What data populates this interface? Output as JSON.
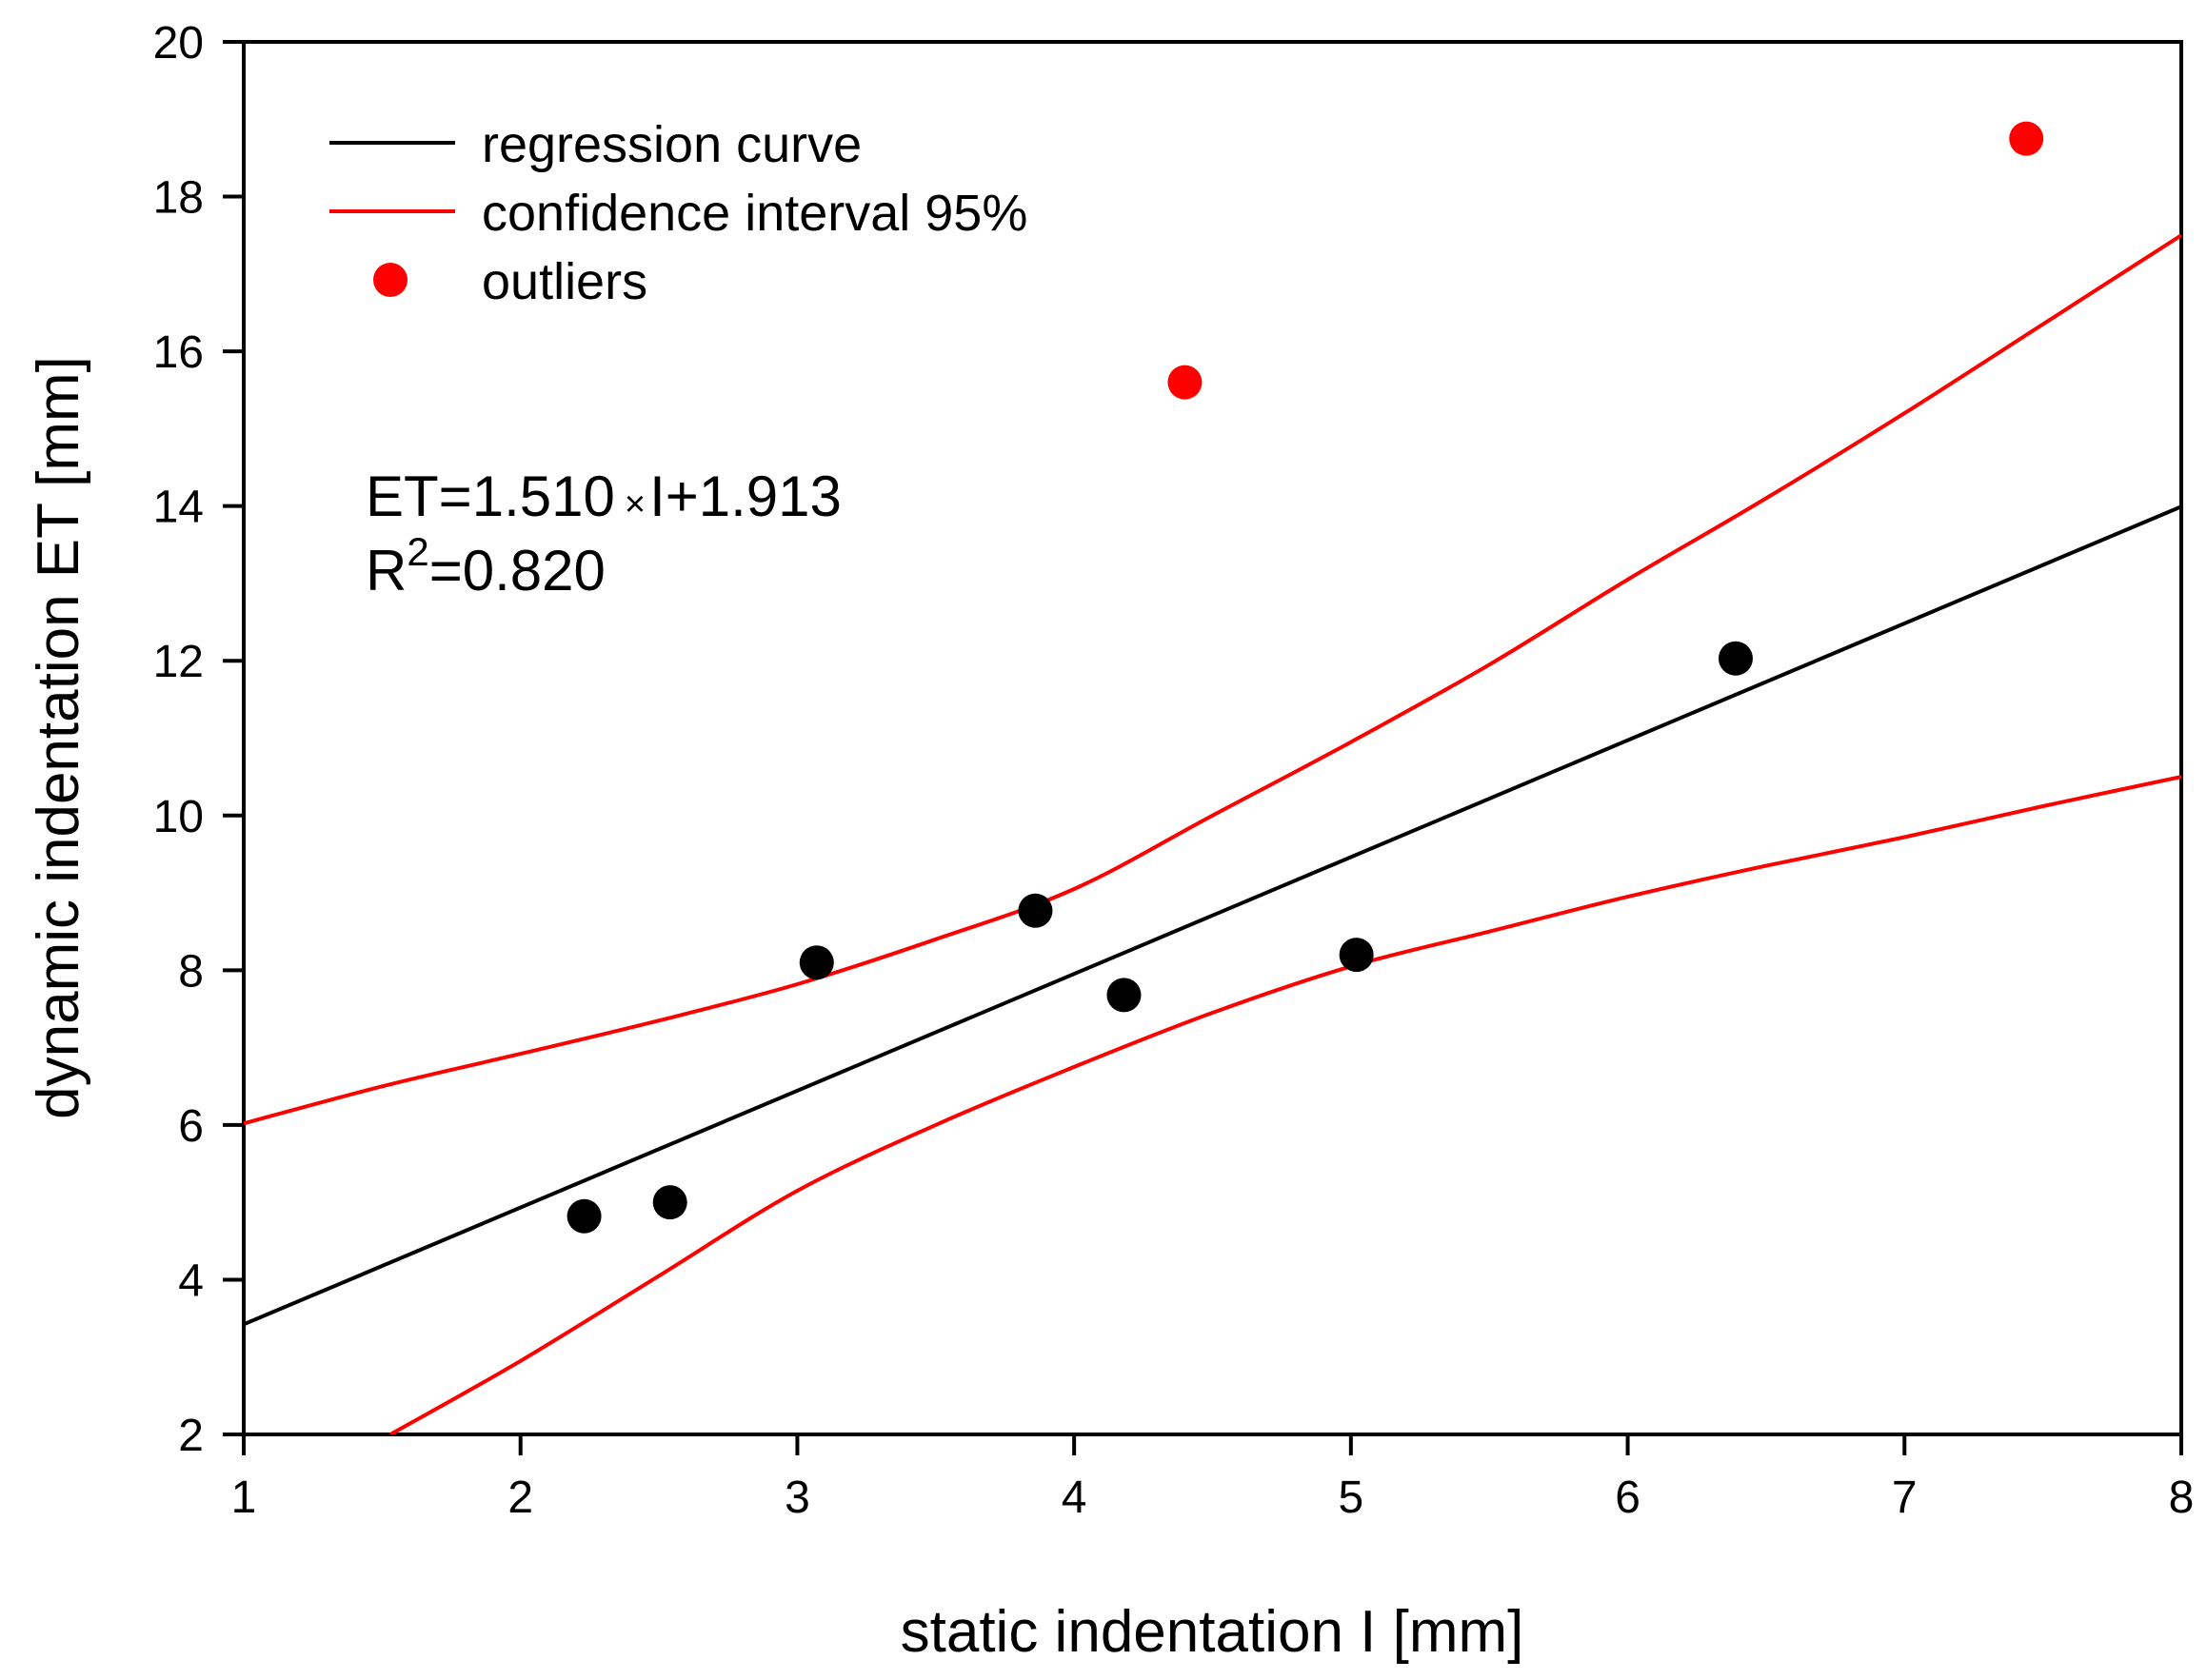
{
  "chart_data": {
    "type": "scatter",
    "xlabel": "static indentation I [mm]",
    "ylabel": "dynamic indentation ET [mm]",
    "xlim": [
      1,
      8
    ],
    "ylim": [
      2,
      20
    ],
    "xticks": [
      1,
      2,
      3,
      4,
      5,
      6,
      7,
      8
    ],
    "yticks": [
      2,
      4,
      6,
      8,
      10,
      12,
      14,
      16,
      18,
      20
    ],
    "grid": false,
    "legend_position": "top-left",
    "legend": [
      {
        "label": "regression curve",
        "kind": "line",
        "color": "#000000"
      },
      {
        "label": "confidence interval 95%",
        "kind": "line",
        "color": "#ff0000"
      },
      {
        "label": "outliers",
        "kind": "marker",
        "color": "#ff0000"
      }
    ],
    "annotation": {
      "equation_prefix": "ET=1.510",
      "multiply_sign": "×",
      "equation_suffix": "I+1.913",
      "r2_base": "R",
      "r2_exponent": "2",
      "r2_value": "=0.820"
    },
    "regression": {
      "slope": 1.51,
      "intercept": 1.913,
      "color": "#000000"
    },
    "confidence_upper": {
      "color": "#ff0000",
      "x": [
        1.0,
        1.5,
        2.0,
        2.5,
        3.0,
        3.5,
        4.0,
        4.5,
        5.0,
        5.5,
        6.0,
        6.5,
        7.0,
        7.5,
        8.0
      ],
      "y": [
        6.02,
        6.5,
        6.92,
        7.35,
        7.82,
        8.4,
        9.05,
        10.0,
        10.95,
        11.95,
        13.05,
        14.1,
        15.2,
        16.35,
        17.5
      ]
    },
    "confidence_lower": {
      "color": "#ff0000",
      "x": [
        1.53,
        2.0,
        2.5,
        3.0,
        3.5,
        4.0,
        4.5,
        5.0,
        5.5,
        6.0,
        6.5,
        7.0,
        7.5,
        8.0
      ],
      "y": [
        2.0,
        2.95,
        4.05,
        5.15,
        6.0,
        6.75,
        7.45,
        8.05,
        8.5,
        8.95,
        9.35,
        9.72,
        10.12,
        10.5
      ]
    },
    "points": {
      "color": "#000000",
      "x": [
        2.23,
        2.54,
        3.07,
        3.86,
        4.18,
        5.02,
        6.39
      ],
      "y": [
        4.82,
        5.0,
        8.1,
        8.77,
        7.68,
        8.2,
        12.03
      ]
    },
    "outliers": {
      "color": "#ff0000",
      "x": [
        4.4,
        7.44
      ],
      "y": [
        15.6,
        18.75
      ]
    }
  }
}
